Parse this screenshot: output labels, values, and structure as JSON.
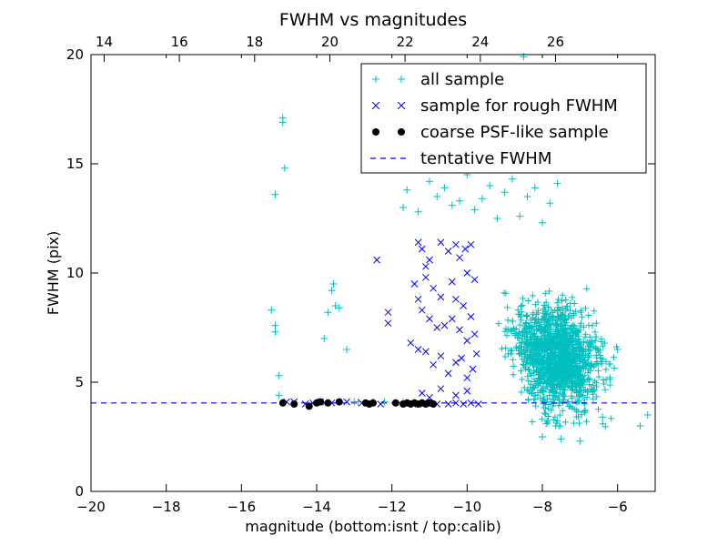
{
  "chart_data": {
    "type": "scatter",
    "title": "FWHM vs magnitudes",
    "xlabel": "magnitude (bottom:isnt / top:calib)",
    "ylabel": "FWHM (pix)",
    "xlim": [
      -20,
      -5
    ],
    "ylim": [
      0,
      20
    ],
    "grid": false,
    "legend_position": "top-right",
    "x_ticks": [
      "−20",
      "−18",
      "−16",
      "−14",
      "−12",
      "−10",
      "−8",
      "−6"
    ],
    "y_ticks": [
      "0",
      "5",
      "10",
      "15",
      "20"
    ],
    "top_axis": {
      "ticks": [
        "14",
        "16",
        "18",
        "20",
        "22",
        "24",
        "26"
      ],
      "tick_values": [
        14,
        16,
        18,
        20,
        22,
        24,
        26
      ],
      "offset": 33.65
    },
    "colors": {
      "all": "#00bfbf",
      "rough": "#0000ff",
      "coarse": "#000000",
      "tentative": "#0000ff"
    },
    "series": [
      {
        "name": "all sample",
        "marker": "plus",
        "points": [
          [
            -15.2,
            8.3
          ],
          [
            -15.1,
            7.6
          ],
          [
            -15.1,
            7.3
          ],
          [
            -15.0,
            4.4
          ],
          [
            -15.0,
            5.3
          ],
          [
            -15.1,
            13.6
          ],
          [
            -14.9,
            16.9
          ],
          [
            -14.9,
            17.1
          ],
          [
            -14.85,
            14.8
          ],
          [
            -13.7,
            8.2
          ],
          [
            -13.6,
            9.2
          ],
          [
            -13.55,
            9.5
          ],
          [
            -13.5,
            8.5
          ],
          [
            -13.4,
            8.4
          ],
          [
            -13.8,
            7.0
          ],
          [
            -13.2,
            6.5
          ],
          [
            -13.0,
            4.1
          ],
          [
            -12.9,
            4.1
          ],
          [
            -12.5,
            4.1
          ],
          [
            -12.2,
            4.1
          ],
          [
            -11.7,
            4.1
          ],
          [
            -11.3,
            4.0
          ],
          [
            -11.7,
            13.0
          ],
          [
            -11.6,
            13.8
          ],
          [
            -11.3,
            12.8
          ],
          [
            -11.0,
            14.2
          ],
          [
            -10.8,
            13.5
          ],
          [
            -10.6,
            13.9
          ],
          [
            -10.4,
            13.1
          ],
          [
            -10.2,
            13.3
          ],
          [
            -10.0,
            14.5
          ],
          [
            -9.8,
            12.9
          ],
          [
            -9.6,
            13.4
          ],
          [
            -9.4,
            14.0
          ],
          [
            -9.2,
            12.5
          ],
          [
            -9.0,
            13.7
          ],
          [
            -8.8,
            14.3
          ],
          [
            -8.6,
            12.6
          ],
          [
            -8.4,
            13.5
          ],
          [
            -8.2,
            13.9
          ],
          [
            -8.0,
            12.3
          ],
          [
            -7.8,
            13.2
          ],
          [
            -7.6,
            14.1
          ],
          [
            -8.5,
            19.9
          ],
          [
            -7.9,
            3.1
          ],
          [
            -8.0,
            2.5
          ],
          [
            -7.5,
            2.4
          ],
          [
            -7.0,
            2.3
          ],
          [
            -6.4,
            3.4
          ],
          [
            -6.0,
            6.5
          ],
          [
            -5.4,
            3.0
          ],
          [
            -5.2,
            3.5
          ]
        ]
      },
      {
        "name": "sample for rough FWHM",
        "marker": "x",
        "points": [
          [
            -14.8,
            4.1
          ],
          [
            -14.6,
            4.1
          ],
          [
            -14.3,
            4.0
          ],
          [
            -14.1,
            4.05
          ],
          [
            -13.9,
            4.1
          ],
          [
            -13.6,
            4.05
          ],
          [
            -13.2,
            4.1
          ],
          [
            -12.8,
            4.05
          ],
          [
            -12.3,
            4.0
          ],
          [
            -12.4,
            10.6
          ],
          [
            -12.1,
            8.2
          ],
          [
            -12.1,
            7.7
          ],
          [
            -11.3,
            11.4
          ],
          [
            -11.2,
            11.1
          ],
          [
            -11.1,
            10.3
          ],
          [
            -11.0,
            10.6
          ],
          [
            -10.7,
            11.4
          ],
          [
            -10.5,
            11.0
          ],
          [
            -10.3,
            11.3
          ],
          [
            -10.2,
            10.7
          ],
          [
            -10.05,
            11.1
          ],
          [
            -10.0,
            10.0
          ],
          [
            -9.9,
            11.3
          ],
          [
            -9.8,
            9.7
          ],
          [
            -11.4,
            9.5
          ],
          [
            -11.1,
            9.8
          ],
          [
            -10.9,
            9.3
          ],
          [
            -10.7,
            8.9
          ],
          [
            -10.4,
            9.6
          ],
          [
            -10.3,
            8.8
          ],
          [
            -10.1,
            8.5
          ],
          [
            -11.3,
            8.8
          ],
          [
            -11.2,
            8.3
          ],
          [
            -11.0,
            7.9
          ],
          [
            -10.8,
            7.5
          ],
          [
            -10.6,
            7.6
          ],
          [
            -10.4,
            7.9
          ],
          [
            -10.2,
            7.4
          ],
          [
            -10.0,
            6.9
          ],
          [
            -9.9,
            8.0
          ],
          [
            -9.8,
            7.2
          ],
          [
            -11.5,
            6.8
          ],
          [
            -11.3,
            6.5
          ],
          [
            -11.1,
            6.4
          ],
          [
            -10.9,
            5.8
          ],
          [
            -10.7,
            6.2
          ],
          [
            -10.5,
            5.4
          ],
          [
            -10.3,
            5.9
          ],
          [
            -10.15,
            6.1
          ],
          [
            -10.0,
            5.2
          ],
          [
            -9.85,
            5.6
          ],
          [
            -9.75,
            6.3
          ],
          [
            -11.2,
            4.5
          ],
          [
            -11.0,
            4.3
          ],
          [
            -10.7,
            4.7
          ],
          [
            -10.3,
            4.4
          ],
          [
            -10.0,
            4.6
          ],
          [
            -11.3,
            4.0
          ],
          [
            -11.0,
            4.05
          ],
          [
            -10.8,
            4.0
          ],
          [
            -10.5,
            4.0
          ],
          [
            -10.3,
            4.05
          ],
          [
            -10.1,
            4.0
          ],
          [
            -9.9,
            4.05
          ],
          [
            -9.7,
            4.0
          ]
        ]
      },
      {
        "name": "coarse PSF-like sample",
        "marker": "dot",
        "points": [
          [
            -14.9,
            4.05
          ],
          [
            -14.6,
            4.0
          ],
          [
            -14.2,
            3.9
          ],
          [
            -14.0,
            4.05
          ],
          [
            -13.9,
            4.1
          ],
          [
            -13.7,
            4.05
          ],
          [
            -13.4,
            4.1
          ],
          [
            -12.7,
            4.05
          ],
          [
            -12.6,
            4.0
          ],
          [
            -12.5,
            4.05
          ],
          [
            -11.9,
            4.05
          ],
          [
            -11.7,
            4.0
          ],
          [
            -11.6,
            4.05
          ],
          [
            -11.5,
            4.0
          ],
          [
            -11.4,
            4.05
          ],
          [
            -11.3,
            4.0
          ],
          [
            -11.2,
            4.05
          ],
          [
            -11.1,
            4.0
          ],
          [
            -11.0,
            4.05
          ],
          [
            -10.9,
            4.0
          ]
        ]
      },
      {
        "name": "tentative FWHM",
        "marker": "dashed-line",
        "y": 4.05
      }
    ]
  }
}
